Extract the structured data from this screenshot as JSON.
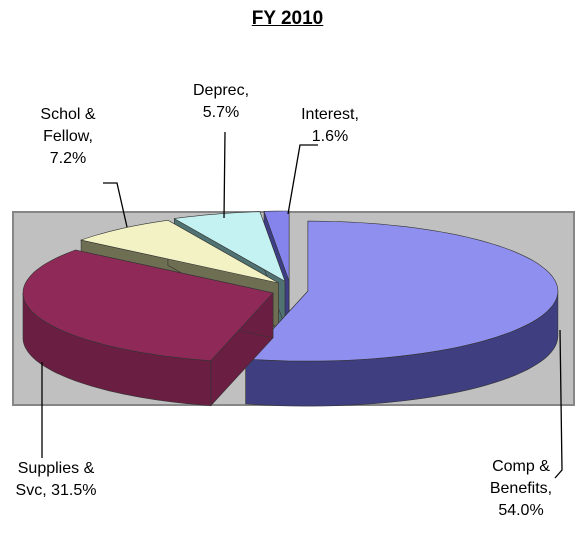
{
  "chart_data": {
    "type": "pie3d",
    "title": "FY 2010",
    "categories": [
      "Comp & Benefits",
      "Supplies & Svc",
      "Schol & Fellow",
      "Deprec",
      "Interest"
    ],
    "values": [
      54.0,
      31.5,
      7.2,
      5.7,
      1.6
    ],
    "value_labels": [
      "Comp & Benefits, 54.0%",
      "Supplies & Svc, 31.5%",
      "Schol & Fellow, 7.2%",
      "Deprec, 5.7%",
      "Interest, 1.6%"
    ],
    "colors": [
      "#8f8ff0",
      "#8f2a58",
      "#f2f2c4",
      "#c4f2f2",
      "#8484ec"
    ],
    "side_colors": [
      "#3e3e80",
      "#6a1f42",
      "#6e6e52",
      "#507272",
      "#3e3e86"
    ]
  }
}
